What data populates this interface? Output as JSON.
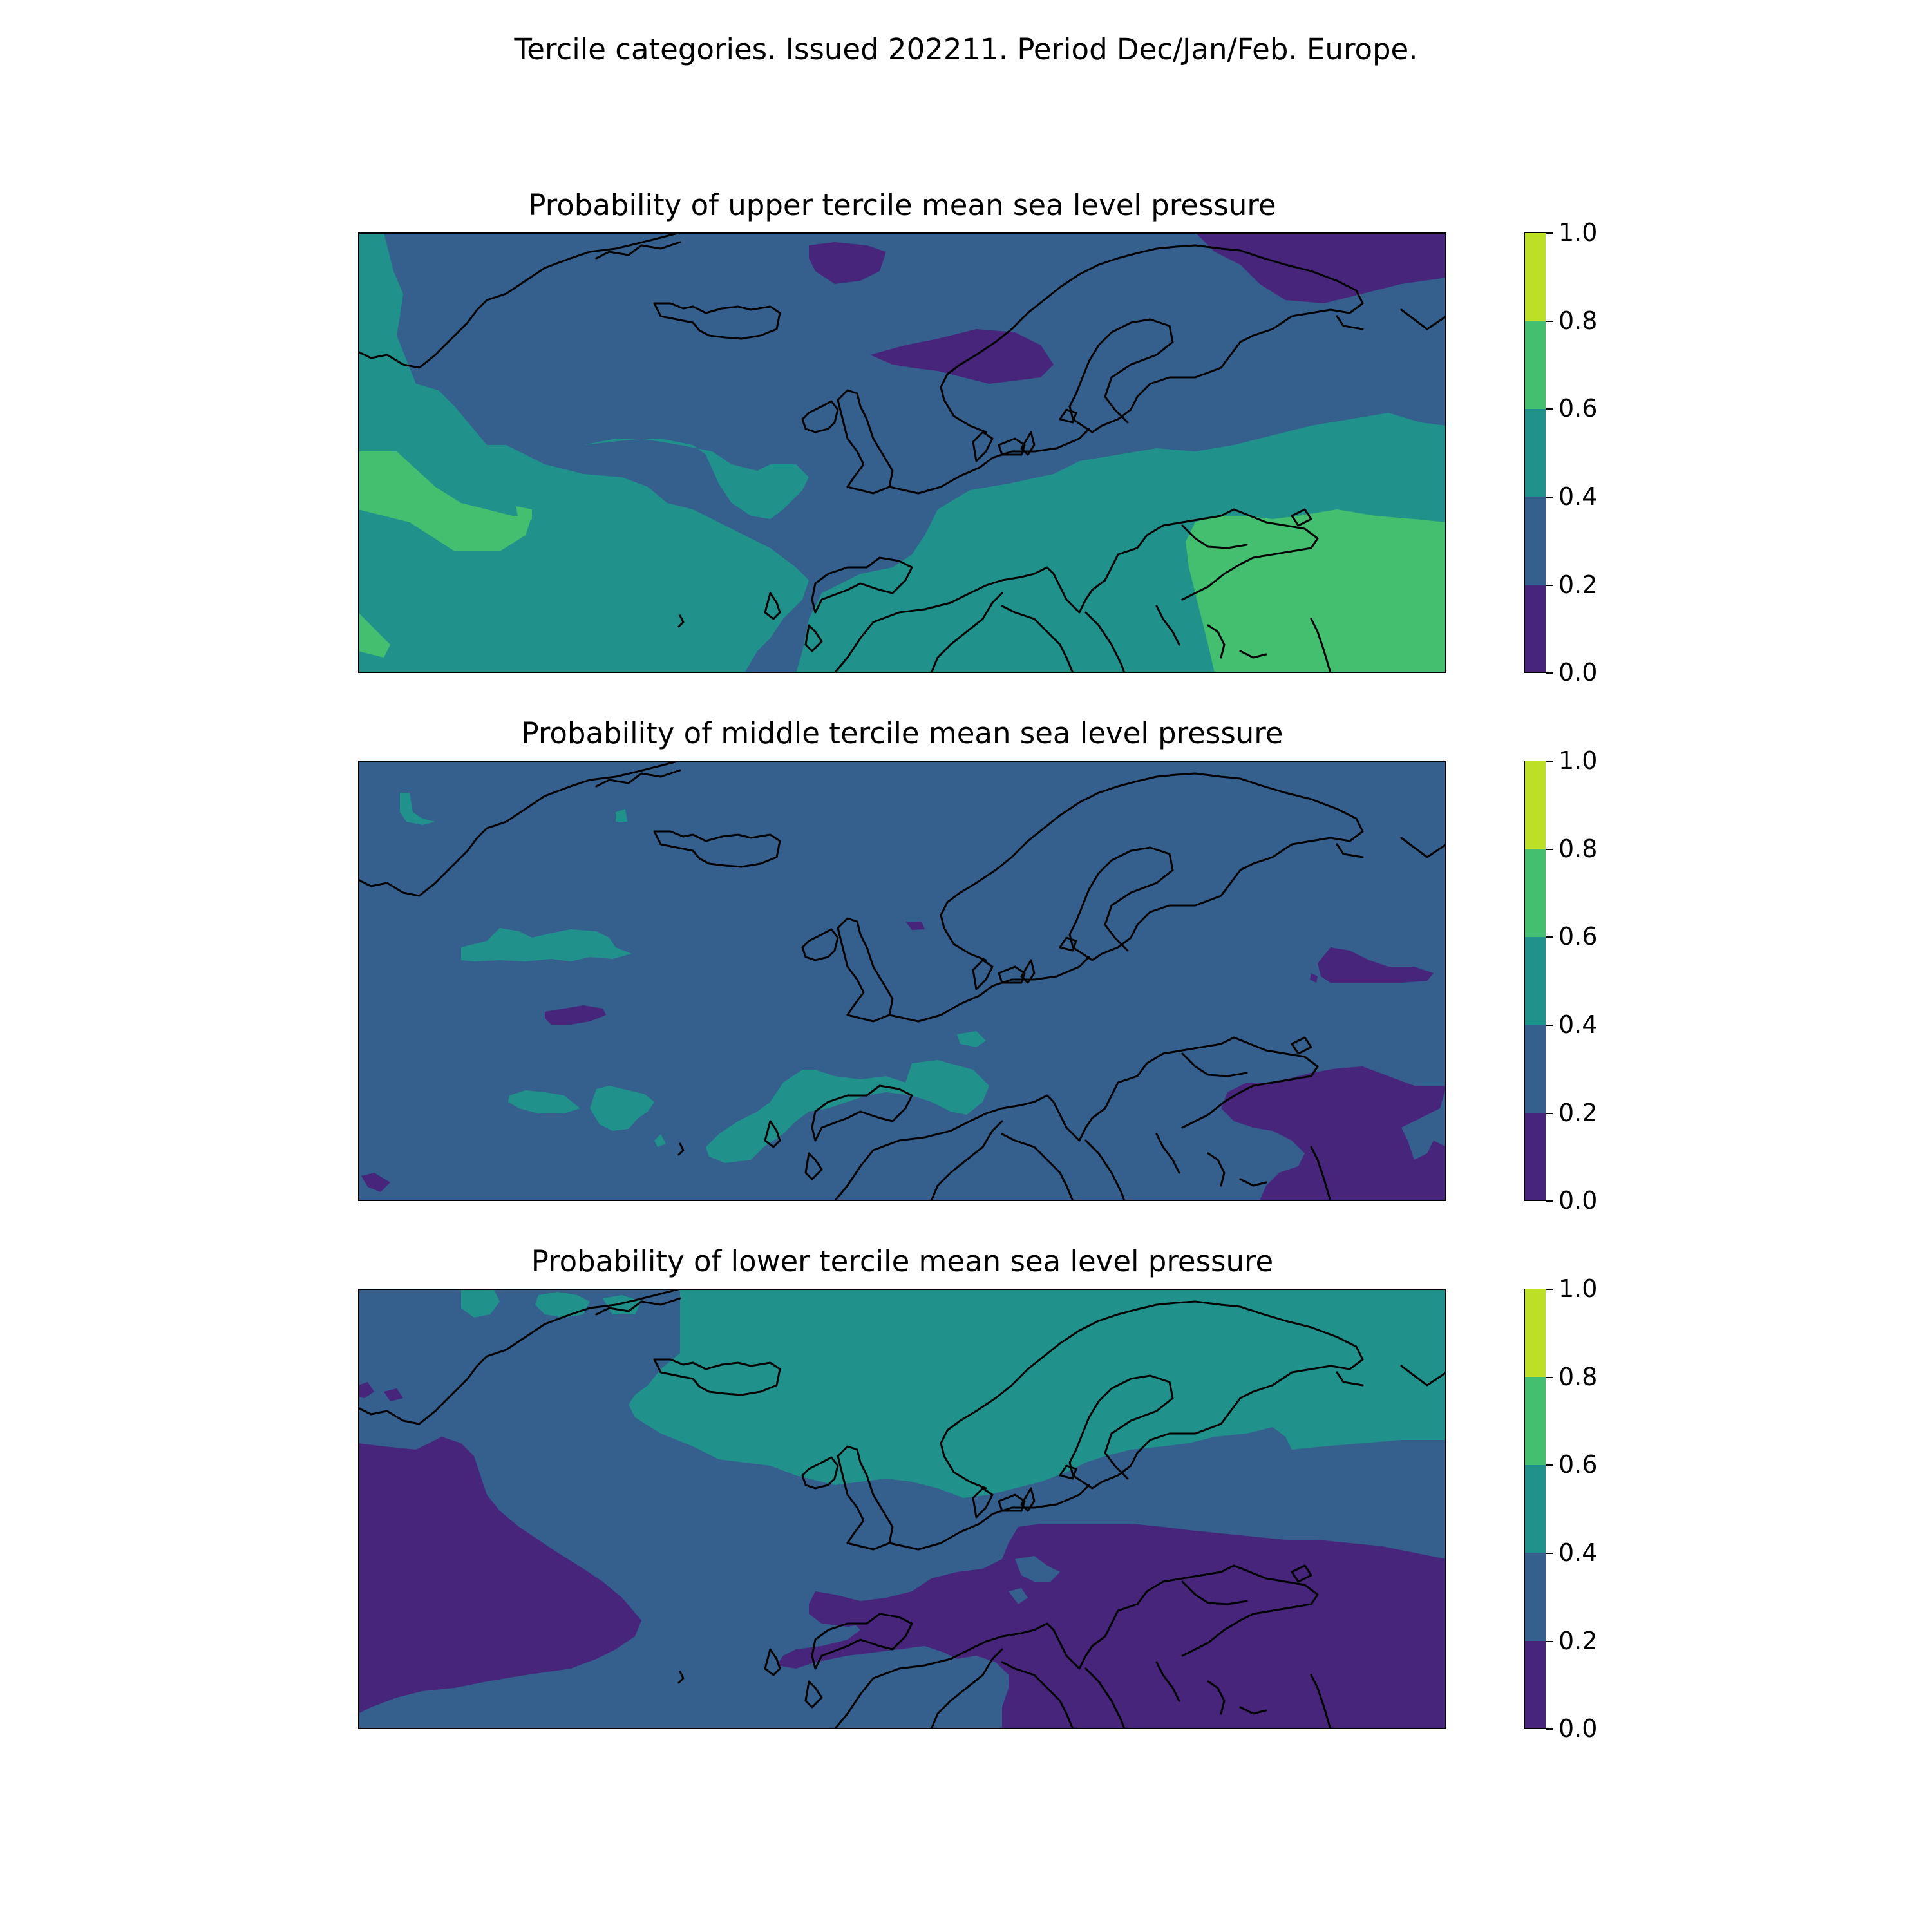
{
  "title": "Tercile categories. Issued 202211. Period Dec/Jan/Feb. Europe.",
  "colorbar": {
    "ticks": [
      "0.0",
      "0.2",
      "0.4",
      "0.6",
      "0.8",
      "1.0"
    ],
    "levels": [
      0.0,
      0.2,
      0.4,
      0.6,
      0.8,
      1.0
    ],
    "colors": [
      "#46257a",
      "#355f8d",
      "#21918c",
      "#44bf70",
      "#bddf26"
    ]
  },
  "panels": [
    {
      "title": "Probability of upper tercile mean sea level pressure",
      "dominant_category": "0.2-0.4",
      "regions": [
        {
          "area": "Greenland Sea and southwest North Atlantic",
          "category": "0.4-0.6"
        },
        {
          "area": "Central North Atlantic west of Iberia",
          "category": "0.4-0.6"
        },
        {
          "area": "Western Mediterranean and central Europe",
          "category": "0.4-0.6"
        },
        {
          "area": "Eastern Europe",
          "category": "0.4-0.6"
        },
        {
          "area": "Black Sea, Turkey and eastern Mediterranean",
          "category": "0.6-0.8"
        },
        {
          "area": "Norwegian Sea",
          "category": "0.0-0.2"
        },
        {
          "area": "Barents Sea",
          "category": "0.0-0.2"
        }
      ]
    },
    {
      "title": "Probability of middle tercile mean sea level pressure",
      "dominant_category": "0.2-0.4",
      "regions": [
        {
          "area": "Mid-Atlantic patches",
          "category": "0.4-0.6"
        },
        {
          "area": "Bay of Biscay and Iberian coast",
          "category": "0.4-0.6"
        },
        {
          "area": "Black Sea and Turkey",
          "category": "0.0-0.2"
        },
        {
          "area": "Western Russia",
          "category": "0.0-0.2"
        }
      ]
    },
    {
      "title": "Probability of lower tercile mean sea level pressure",
      "dominant_category": "0.2-0.4",
      "regions": [
        {
          "area": "Iceland, Norwegian Sea and Scandinavia",
          "category": "0.4-0.6"
        },
        {
          "area": "Western subtropical North Atlantic",
          "category": "0.0-0.2"
        },
        {
          "area": "Mediterranean, Balkans, Black Sea and Turkey",
          "category": "0.0-0.2"
        },
        {
          "area": "Southern Greenland coast",
          "category": "0.4-0.6"
        }
      ]
    }
  ]
}
